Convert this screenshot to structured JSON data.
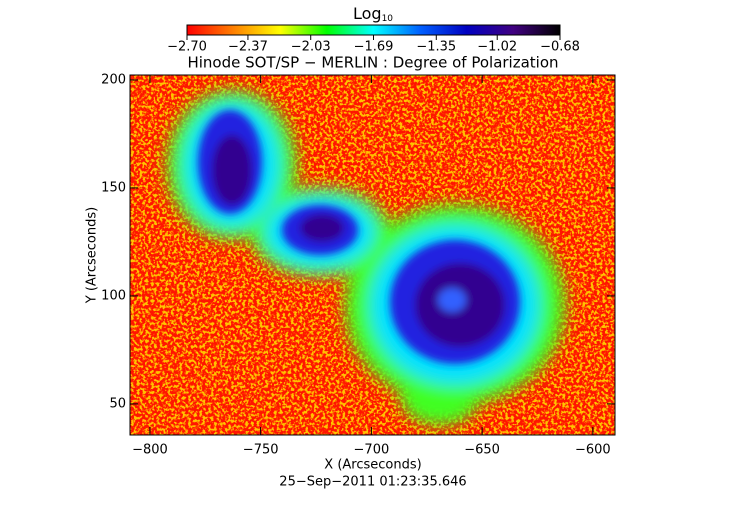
{
  "chart_data": {
    "type": "heatmap",
    "title": "Hinode SOT/SP − MERLIN : Degree of Polarization",
    "x_label": "X (Arcseconds)",
    "y_label": "Y (Arcseconds)",
    "footer": "25−Sep−2011 01:23:35.646",
    "colorbar_title": {
      "base": "Log",
      "subscript": "10"
    },
    "colorbar_lim": [
      -2.7,
      -0.68
    ],
    "colorbar_ticks": [
      {
        "value": -2.7,
        "label": "−2.70"
      },
      {
        "value": -2.37,
        "label": "−2.37"
      },
      {
        "value": -2.03,
        "label": "−2.03"
      },
      {
        "value": -1.69,
        "label": "−1.69"
      },
      {
        "value": -1.35,
        "label": "−1.35"
      },
      {
        "value": -1.02,
        "label": "−1.02"
      },
      {
        "value": -0.68,
        "label": "−0.68"
      }
    ],
    "colormap": [
      "#ff0000",
      "#ff8000",
      "#ffff00",
      "#00ff00",
      "#00ffff",
      "#0060ff",
      "#0000c0",
      "#400080",
      "#000000"
    ],
    "xlim": [
      -809,
      -590
    ],
    "ylim": [
      35.6,
      202.3
    ],
    "xticks": [
      {
        "value": -800,
        "label": "−800"
      },
      {
        "value": -750,
        "label": "−750"
      },
      {
        "value": -700,
        "label": "−700"
      },
      {
        "value": -650,
        "label": "−650"
      },
      {
        "value": -600,
        "label": "−600"
      }
    ],
    "yticks": [
      50,
      100,
      150,
      200
    ]
  }
}
